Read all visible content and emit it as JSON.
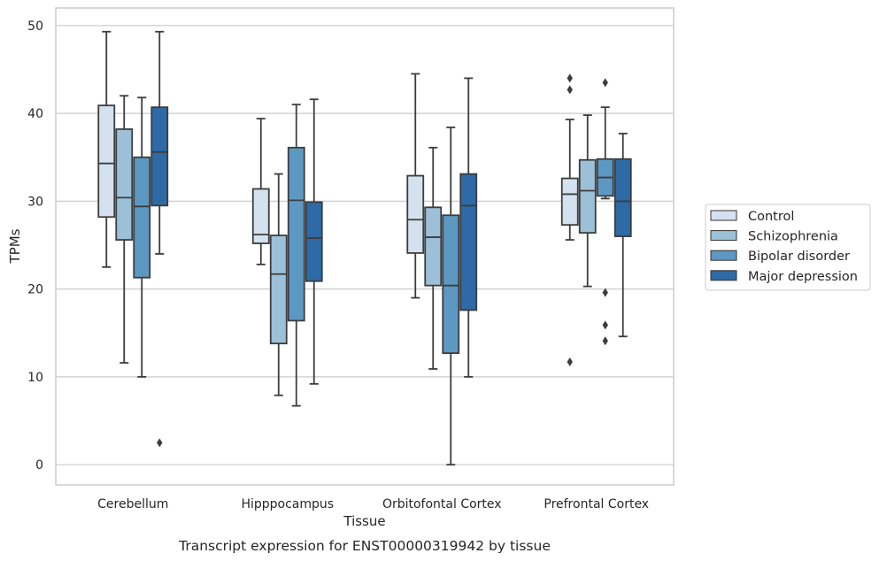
{
  "caption": "Transcript expression for ENST00000319942 by tissue",
  "chart_data": {
    "type": "boxplot",
    "xlabel": "Tissue",
    "ylabel": "TPMs",
    "ylim": [
      -2.3,
      52
    ],
    "yticks": [
      0,
      10,
      20,
      30,
      40,
      50
    ],
    "grid": "horizontal",
    "legend_position": "right",
    "categories": [
      "Cerebellum",
      "Hipppocampus",
      "Orbitofontal Cortex",
      "Prefrontal Cortex"
    ],
    "series": [
      {
        "name": "Control",
        "color": "#d4e2f0",
        "boxes": [
          {
            "whislo": 22.5,
            "q1": 28.2,
            "med": 34.3,
            "q3": 40.9,
            "whishi": 49.3,
            "fliers": []
          },
          {
            "whislo": 22.8,
            "q1": 25.2,
            "med": 26.2,
            "q3": 31.4,
            "whishi": 39.4,
            "fliers": []
          },
          {
            "whislo": 19.0,
            "q1": 24.1,
            "med": 27.9,
            "q3": 32.9,
            "whishi": 44.5,
            "fliers": []
          },
          {
            "whislo": 25.6,
            "q1": 27.3,
            "med": 30.8,
            "q3": 32.6,
            "whishi": 39.3,
            "fliers": [
              11.7,
              42.7,
              44.0
            ]
          }
        ]
      },
      {
        "name": "Schizophrenia",
        "color": "#9cc0d8",
        "boxes": [
          {
            "whislo": 11.6,
            "q1": 25.6,
            "med": 30.4,
            "q3": 38.2,
            "whishi": 42.0,
            "fliers": []
          },
          {
            "whislo": 7.9,
            "q1": 13.8,
            "med": 21.7,
            "q3": 26.1,
            "whishi": 33.1,
            "fliers": []
          },
          {
            "whislo": 10.9,
            "q1": 20.4,
            "med": 25.9,
            "q3": 29.3,
            "whishi": 36.1,
            "fliers": []
          },
          {
            "whislo": 20.3,
            "q1": 26.4,
            "med": 31.2,
            "q3": 34.7,
            "whishi": 39.8,
            "fliers": []
          }
        ]
      },
      {
        "name": "Bipolar disorder",
        "color": "#5d98c2",
        "boxes": [
          {
            "whislo": 10.0,
            "q1": 21.3,
            "med": 29.4,
            "q3": 35.0,
            "whishi": 41.8,
            "fliers": []
          },
          {
            "whislo": 6.7,
            "q1": 16.4,
            "med": 30.1,
            "q3": 36.1,
            "whishi": 41.0,
            "fliers": []
          },
          {
            "whislo": 0.0,
            "q1": 12.7,
            "med": 20.4,
            "q3": 28.4,
            "whishi": 38.4,
            "fliers": []
          },
          {
            "whislo": 30.3,
            "q1": 30.6,
            "med": 32.7,
            "q3": 34.8,
            "whishi": 40.7,
            "fliers": [
              14.1,
              15.9,
              19.6,
              43.5
            ]
          }
        ]
      },
      {
        "name": "Major depression",
        "color": "#2d6aa6",
        "boxes": [
          {
            "whislo": 24.0,
            "q1": 29.5,
            "med": 35.6,
            "q3": 40.7,
            "whishi": 49.3,
            "fliers": [
              2.5
            ]
          },
          {
            "whislo": 9.2,
            "q1": 20.9,
            "med": 25.8,
            "q3": 29.9,
            "whishi": 41.6,
            "fliers": []
          },
          {
            "whislo": 10.0,
            "q1": 17.6,
            "med": 29.5,
            "q3": 33.1,
            "whishi": 44.0,
            "fliers": []
          },
          {
            "whislo": 14.6,
            "q1": 26.0,
            "med": 30.0,
            "q3": 34.8,
            "whishi": 37.7,
            "fliers": []
          }
        ]
      }
    ]
  }
}
